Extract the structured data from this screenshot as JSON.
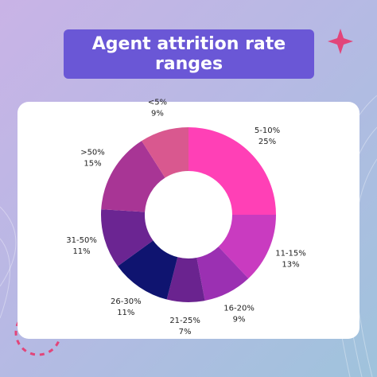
{
  "chart_data": {
    "type": "donut",
    "title": "Agent attrition rate ranges",
    "categories": [
      "5-10%",
      "11-15%",
      "16-20%",
      "21-25%",
      "26-30%",
      "31-50%",
      ">50%",
      "<5%"
    ],
    "values": [
      25,
      13,
      9,
      7,
      11,
      11,
      15,
      9
    ],
    "value_labels": [
      "25%",
      "13%",
      "9%",
      "7%",
      "11%",
      "11%",
      "15%",
      "9%"
    ],
    "colors": [
      "#ff40b6",
      "#c93bc0",
      "#9b30b2",
      "#6a238f",
      "#0f1470",
      "#6b2592",
      "#a83595",
      "#d9588f"
    ]
  }
}
